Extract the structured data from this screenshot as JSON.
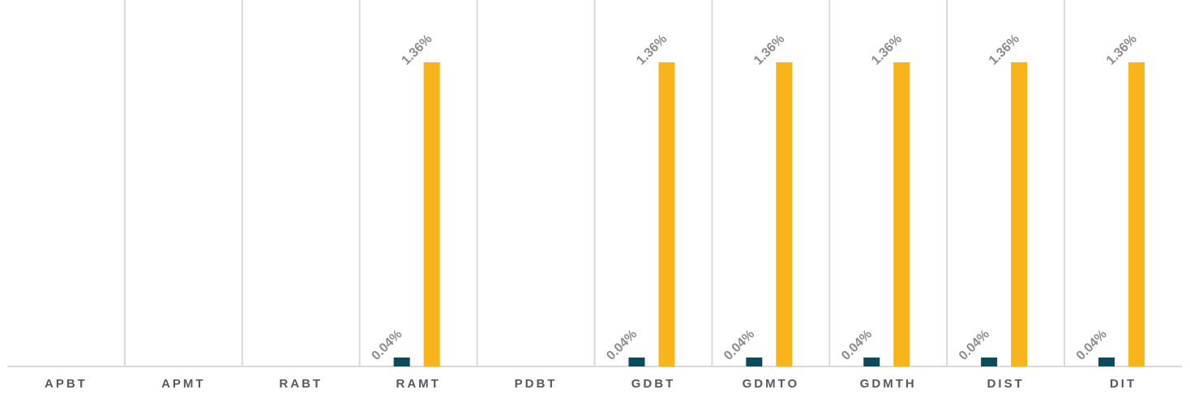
{
  "chart_data": {
    "type": "bar",
    "categories": [
      "APBT",
      "APMT",
      "RABT",
      "RAMT",
      "PDBT",
      "GDBT",
      "GDMTO",
      "GDMTH",
      "DIST",
      "DIT"
    ],
    "series": [
      {
        "color": "#0d4a5a",
        "values": [
          null,
          null,
          null,
          0.04,
          null,
          0.04,
          0.04,
          0.04,
          0.04,
          0.04
        ],
        "labels": [
          null,
          null,
          null,
          "0.04%",
          null,
          "0.04%",
          "0.04%",
          "0.04%",
          "0.04%",
          "0.04%"
        ]
      },
      {
        "color": "#f9b31b",
        "values": [
          null,
          null,
          null,
          1.36,
          null,
          1.36,
          1.36,
          1.36,
          1.36,
          1.36
        ],
        "labels": [
          null,
          null,
          null,
          "1.36%",
          null,
          "1.36%",
          "1.36%",
          "1.36%",
          "1.36%",
          "1.36%"
        ]
      }
    ],
    "title": "",
    "xlabel": "",
    "ylabel": "",
    "ylim": [
      0,
      1.36
    ],
    "grid": "vertical-separators",
    "legend": "none",
    "colors": {
      "separator": "#d9d9d9",
      "axis": "#d9d9d9",
      "category_text": "#595959",
      "label_text": "#8c8c8c"
    }
  }
}
